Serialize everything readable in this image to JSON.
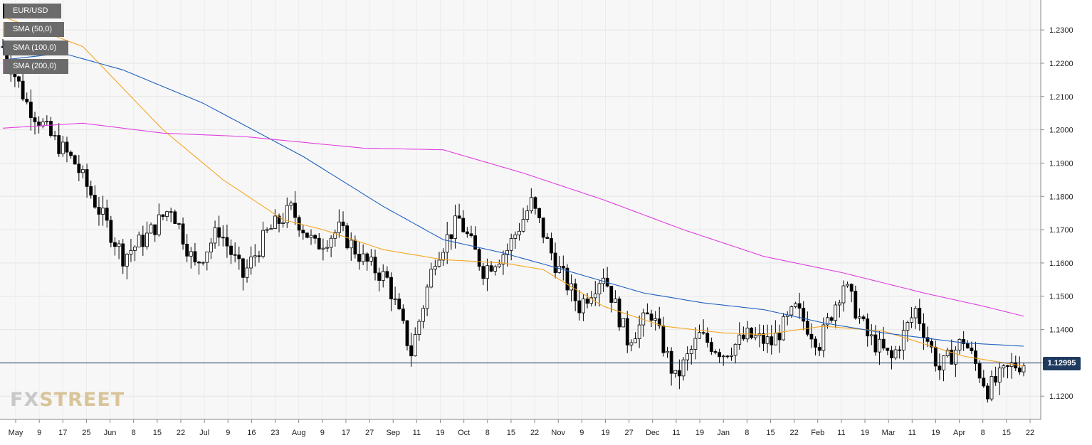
{
  "chart_data": {
    "type": "candlestick",
    "symbol": "EUR/USD",
    "interval": "daily",
    "ylim": [
      1.113,
      1.239
    ],
    "y_ticks": [
      "1.2300",
      "1.2200",
      "1.2100",
      "1.2000",
      "1.1900",
      "1.1800",
      "1.1700",
      "1.1600",
      "1.1500",
      "1.1400",
      "1.1300",
      "1.1200"
    ],
    "x_ticks": [
      "May",
      "9",
      "17",
      "25",
      "Jun",
      "8",
      "15",
      "22",
      "Jul",
      "9",
      "16",
      "23",
      "Aug",
      "9",
      "17",
      "27",
      "Sep",
      "11",
      "19",
      "Oct",
      "8",
      "15",
      "22",
      "Nov",
      "9",
      "19",
      "27",
      "Dec",
      "11",
      "19",
      "Jan",
      "8",
      "15",
      "22",
      "Feb",
      "11",
      "19",
      "Mar",
      "11",
      "19",
      "Apr",
      "8",
      "15",
      "22"
    ],
    "current_price": "1.12995",
    "legend": [
      {
        "label": "EUR/USD",
        "color": "#000000"
      },
      {
        "label": "SMA (50,0)",
        "color": "#f5a623"
      },
      {
        "label": "SMA (100,0)",
        "color": "#1f5fbf"
      },
      {
        "label": "SMA (200,0)",
        "color": "#e040e0"
      }
    ],
    "grid": true,
    "series": [
      {
        "name": "SMA (50,0)",
        "color": "#f5a623",
        "points": [
          [
            0,
            1.234
          ],
          [
            20,
            1.225
          ],
          [
            40,
            1.2
          ],
          [
            55,
            1.185
          ],
          [
            70,
            1.173
          ],
          [
            80,
            1.17
          ],
          [
            95,
            1.164
          ],
          [
            110,
            1.161
          ],
          [
            125,
            1.16
          ],
          [
            135,
            1.158
          ],
          [
            150,
            1.147
          ],
          [
            165,
            1.141
          ],
          [
            180,
            1.139
          ],
          [
            190,
            1.1385
          ],
          [
            205,
            1.141
          ],
          [
            220,
            1.1395
          ],
          [
            240,
            1.132
          ],
          [
            255,
            1.129
          ]
        ]
      },
      {
        "name": "SMA (100,0)",
        "color": "#1f5fbf",
        "points": [
          [
            0,
            1.221
          ],
          [
            15,
            1.223
          ],
          [
            30,
            1.218
          ],
          [
            50,
            1.208
          ],
          [
            75,
            1.192
          ],
          [
            95,
            1.177
          ],
          [
            110,
            1.167
          ],
          [
            125,
            1.163
          ],
          [
            140,
            1.158
          ],
          [
            160,
            1.151
          ],
          [
            175,
            1.148
          ],
          [
            190,
            1.146
          ],
          [
            205,
            1.142
          ],
          [
            220,
            1.139
          ],
          [
            240,
            1.136
          ],
          [
            255,
            1.135
          ]
        ]
      },
      {
        "name": "SMA (200,0)",
        "color": "#e040e0",
        "points": [
          [
            0,
            1.2005
          ],
          [
            20,
            1.202
          ],
          [
            40,
            1.199
          ],
          [
            60,
            1.198
          ],
          [
            90,
            1.1945
          ],
          [
            110,
            1.194
          ],
          [
            130,
            1.187
          ],
          [
            150,
            1.179
          ],
          [
            170,
            1.17
          ],
          [
            190,
            1.162
          ],
          [
            210,
            1.157
          ],
          [
            230,
            1.151
          ],
          [
            245,
            1.147
          ],
          [
            255,
            1.144
          ]
        ]
      }
    ],
    "candles_path": [
      [
        0,
        1.225
      ],
      [
        6,
        1.208
      ],
      [
        12,
        1.198
      ],
      [
        18,
        1.19
      ],
      [
        24,
        1.176
      ],
      [
        30,
        1.162
      ],
      [
        36,
        1.168
      ],
      [
        42,
        1.177
      ],
      [
        48,
        1.159
      ],
      [
        54,
        1.17
      ],
      [
        60,
        1.156
      ],
      [
        66,
        1.169
      ],
      [
        72,
        1.176
      ],
      [
        78,
        1.165
      ],
      [
        84,
        1.17
      ],
      [
        90,
        1.161
      ],
      [
        96,
        1.155
      ],
      [
        102,
        1.133
      ],
      [
        108,
        1.162
      ],
      [
        114,
        1.173
      ],
      [
        120,
        1.158
      ],
      [
        126,
        1.164
      ],
      [
        132,
        1.178
      ],
      [
        138,
        1.16
      ],
      [
        144,
        1.147
      ],
      [
        150,
        1.157
      ],
      [
        156,
        1.137
      ],
      [
        162,
        1.145
      ],
      [
        168,
        1.125
      ],
      [
        174,
        1.138
      ],
      [
        180,
        1.133
      ],
      [
        186,
        1.138
      ],
      [
        192,
        1.136
      ],
      [
        198,
        1.146
      ],
      [
        204,
        1.136
      ],
      [
        210,
        1.154
      ],
      [
        216,
        1.138
      ],
      [
        222,
        1.131
      ],
      [
        228,
        1.146
      ],
      [
        234,
        1.128
      ],
      [
        240,
        1.137
      ],
      [
        246,
        1.122
      ],
      [
        252,
        1.129
      ],
      [
        255,
        1.13
      ]
    ]
  }
}
